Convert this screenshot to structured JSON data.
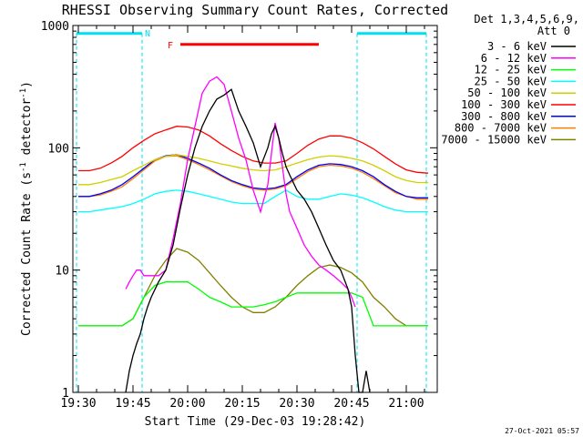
{
  "chart_data": {
    "type": "line",
    "title": "RHESSI Observing Summary Count Rates, Corrected",
    "xlabel": "Start Time (29-Dec-03 19:28:42)",
    "ylabel": "Corrected Count Rate (s",
    "ylabel_sup": "-1",
    "ylabel_mid": " detector",
    "ylabel_end": ")",
    "yscale": "log",
    "ylim": [
      1,
      1000
    ],
    "xlim_minutes": [
      -1.5,
      98.5
    ],
    "x_unit": "minutes after 19:30",
    "xtick_labels": [
      "19:30",
      "19:45",
      "20:00",
      "20:15",
      "20:30",
      "20:45",
      "21:00"
    ],
    "xticks_minutes": [
      0,
      15,
      30,
      45,
      60,
      75,
      90
    ],
    "ytick_labels": [
      "1",
      "10",
      "100",
      "1000"
    ],
    "yticks": [
      1,
      10,
      100,
      1000
    ],
    "legend_title_line1": "Det 1,3,4,5,6,9,",
    "legend_title_line2": "Att 0",
    "legend_position": "top-right, outside",
    "timestamp": "27-Oct-2021 05:57",
    "annotations": {
      "night_label": "N",
      "night_color": "#00e0f0",
      "night_intervals_minutes": [
        [
          -0.5,
          17.5
        ],
        [
          76.5,
          95.5
        ]
      ],
      "flare_label": "F",
      "flare_color": "#ff0000",
      "flare_interval_minutes": [
        28,
        66
      ],
      "flare_level": 700
    },
    "series": [
      {
        "name": "3 - 6 keV",
        "color": "#000000",
        "x": [
          13,
          14,
          15,
          16,
          17,
          18,
          19,
          20,
          22,
          24,
          26,
          28,
          30,
          32,
          34,
          36,
          38,
          40,
          42,
          44,
          46,
          48,
          50,
          52,
          53,
          54,
          55,
          56,
          57,
          58,
          60,
          62,
          64,
          66,
          68,
          70,
          72,
          74,
          75,
          76,
          77,
          78,
          79,
          80
        ],
        "y": [
          1,
          1.5,
          2,
          2.5,
          3,
          4,
          5,
          6,
          8,
          10,
          16,
          32,
          60,
          100,
          150,
          200,
          250,
          270,
          300,
          200,
          150,
          110,
          70,
          100,
          130,
          150,
          120,
          90,
          70,
          60,
          45,
          38,
          30,
          22,
          16,
          12,
          10,
          7,
          5,
          2,
          1,
          1,
          1.5,
          1
        ]
      },
      {
        "name": "6 - 12 keV",
        "color": "#ff00ff",
        "x": [
          13,
          14,
          15,
          16,
          17,
          18,
          19,
          20,
          22,
          24,
          26,
          28,
          30,
          32,
          34,
          36,
          38,
          40,
          42,
          44,
          46,
          48,
          50,
          52,
          53,
          54,
          55,
          56,
          57,
          58,
          60,
          62,
          64,
          66,
          68,
          70,
          72,
          74,
          75,
          76
        ],
        "y": [
          7,
          8,
          9,
          10,
          10,
          9,
          9,
          9,
          9,
          10,
          18,
          35,
          80,
          150,
          280,
          350,
          380,
          330,
          200,
          120,
          80,
          45,
          30,
          50,
          90,
          160,
          120,
          70,
          42,
          30,
          22,
          16,
          13,
          11,
          10,
          9,
          8,
          7,
          6,
          5
        ]
      },
      {
        "name": "12 - 25 keV",
        "color": "#00ff00",
        "x": [
          0,
          3,
          6,
          9,
          12,
          15,
          18,
          21,
          24,
          27,
          30,
          33,
          36,
          39,
          42,
          45,
          48,
          51,
          54,
          57,
          60,
          63,
          66,
          69,
          72,
          75,
          78,
          81,
          84,
          87,
          90,
          93,
          96
        ],
        "y": [
          3.5,
          3.5,
          3.5,
          3.5,
          3.5,
          4,
          6,
          7.5,
          8,
          8,
          8,
          7,
          6,
          5.5,
          5,
          5,
          5,
          5.2,
          5.5,
          6,
          6.5,
          6.5,
          6.5,
          6.5,
          6.5,
          6.5,
          6,
          3.5,
          3.5,
          3.5,
          3.5,
          3.5,
          3.5
        ]
      },
      {
        "name": "25 - 50 keV",
        "color": "#00ffff",
        "x": [
          0,
          3,
          6,
          9,
          12,
          15,
          18,
          21,
          24,
          27,
          30,
          33,
          36,
          39,
          42,
          45,
          48,
          51,
          54,
          57,
          60,
          63,
          66,
          69,
          72,
          75,
          78,
          81,
          84,
          87,
          90,
          93,
          96
        ],
        "y": [
          30,
          30,
          31,
          32,
          33,
          35,
          38,
          42,
          44,
          45,
          44,
          42,
          40,
          38,
          36,
          35,
          35,
          35,
          40,
          45,
          40,
          38,
          38,
          40,
          42,
          41,
          39,
          36,
          33,
          31,
          30,
          30,
          30
        ]
      },
      {
        "name": "50 - 100 keV",
        "color": "#d0d000",
        "x": [
          0,
          3,
          6,
          9,
          12,
          15,
          18,
          21,
          24,
          27,
          30,
          33,
          36,
          39,
          42,
          45,
          48,
          51,
          54,
          57,
          60,
          63,
          66,
          69,
          72,
          75,
          78,
          81,
          84,
          87,
          90,
          93,
          96
        ],
        "y": [
          50,
          50,
          52,
          55,
          58,
          65,
          72,
          80,
          85,
          88,
          85,
          82,
          78,
          74,
          71,
          68,
          66,
          65,
          66,
          70,
          75,
          80,
          84,
          86,
          85,
          82,
          78,
          72,
          65,
          58,
          54,
          52,
          52
        ]
      },
      {
        "name": "100 - 300 keV",
        "color": "#ff0000",
        "x": [
          0,
          3,
          6,
          9,
          12,
          15,
          18,
          21,
          24,
          27,
          30,
          33,
          36,
          39,
          42,
          45,
          48,
          51,
          54,
          57,
          60,
          63,
          66,
          69,
          72,
          75,
          78,
          81,
          84,
          87,
          90,
          93,
          96
        ],
        "y": [
          65,
          65,
          68,
          75,
          85,
          100,
          115,
          130,
          140,
          150,
          148,
          140,
          125,
          108,
          95,
          85,
          78,
          75,
          75,
          78,
          90,
          105,
          118,
          125,
          125,
          120,
          110,
          98,
          85,
          74,
          66,
          63,
          62
        ]
      },
      {
        "name": "300 - 800 keV",
        "color": "#0000ff",
        "x": [
          0,
          3,
          6,
          9,
          12,
          15,
          18,
          21,
          24,
          27,
          30,
          33,
          36,
          39,
          42,
          45,
          48,
          51,
          54,
          57,
          60,
          63,
          66,
          69,
          72,
          75,
          78,
          81,
          84,
          87,
          90,
          93,
          96
        ],
        "y": [
          40,
          40,
          42,
          45,
          50,
          58,
          68,
          80,
          86,
          88,
          82,
          75,
          68,
          60,
          54,
          50,
          47,
          46,
          47,
          50,
          58,
          66,
          72,
          74,
          73,
          70,
          65,
          58,
          50,
          44,
          40,
          39,
          39
        ]
      },
      {
        "name": "800 - 7000 keV",
        "color": "#ff8000",
        "x": [
          0,
          3,
          6,
          9,
          12,
          15,
          18,
          21,
          24,
          27,
          30,
          33,
          36,
          39,
          42,
          45,
          48,
          51,
          54,
          57,
          60,
          63,
          66,
          69,
          72,
          75,
          78,
          81,
          84,
          87,
          90,
          93,
          96
        ],
        "y": [
          40,
          40,
          41,
          44,
          48,
          56,
          66,
          78,
          85,
          86,
          80,
          73,
          66,
          59,
          53,
          49,
          46,
          45,
          46,
          49,
          56,
          64,
          70,
          72,
          71,
          68,
          63,
          56,
          49,
          43,
          40,
          38,
          38
        ]
      },
      {
        "name": "7000 - 15000 keV",
        "color": "#808000",
        "x": [
          0,
          3,
          6,
          9,
          12,
          15,
          18,
          21,
          24,
          27,
          30,
          33,
          36,
          39,
          42,
          45,
          48,
          51,
          54,
          57,
          60,
          63,
          66,
          69,
          72,
          75,
          78,
          81,
          84,
          87,
          90,
          93,
          96
        ],
        "y": [
          3.5,
          3.5,
          3.5,
          3.5,
          3.5,
          4,
          6,
          9,
          12,
          15,
          14,
          12,
          9.5,
          7.5,
          6,
          5,
          4.5,
          4.5,
          5,
          6,
          7.5,
          9,
          10.5,
          11,
          10.5,
          9.5,
          8,
          6,
          5,
          4,
          3.5,
          3.5,
          3.5
        ]
      }
    ]
  }
}
